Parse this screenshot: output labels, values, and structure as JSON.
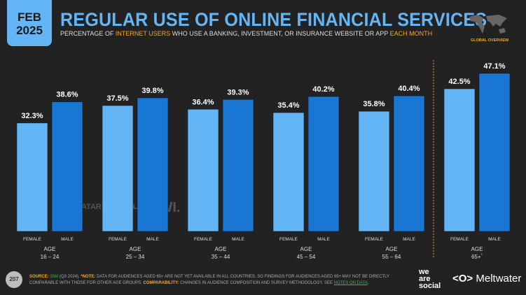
{
  "header": {
    "date_month": "FEB",
    "date_year": "2025",
    "title": "REGULAR USE OF ONLINE FINANCIAL SERVICES",
    "subtitle_pre": "PERCENTAGE OF ",
    "subtitle_hl1": "INTERNET USERS",
    "subtitle_mid": " WHO USE A BANKING, INVESTMENT, OR INSURANCE WEBSITE OR APP ",
    "subtitle_hl2": "EACH MONTH",
    "region_label": "GLOBAL OVERVIEW"
  },
  "chart_data": {
    "type": "bar",
    "title": "REGULAR USE OF ONLINE FINANCIAL SERVICES",
    "ylim": [
      0,
      50
    ],
    "grid": false,
    "categories": [
      "16 – 24",
      "25 – 34",
      "35 – 44",
      "45 – 54",
      "55 – 64",
      "65+"
    ],
    "group_label": "AGE",
    "series": [
      {
        "name": "FEMALE",
        "color": "#64b5f6",
        "values": [
          32.3,
          37.5,
          36.4,
          35.4,
          35.8,
          42.5
        ]
      },
      {
        "name": "MALE",
        "color": "#1976d2",
        "values": [
          38.6,
          39.8,
          39.3,
          40.2,
          40.4,
          47.1
        ]
      }
    ],
    "annotations": [
      "*"
    ],
    "separator_color": "#f5a623"
  },
  "watermark": {
    "left": "DATAREPORTAL",
    "right": "GWI."
  },
  "footer": {
    "page_number": "207",
    "source_label": "SOURCE:",
    "source": "GWI",
    "source_detail": " (Q3 2024). ",
    "note_label": "*NOTE:",
    "note": " DATA FOR AUDIENCES AGED 65+ ARE NOT YET AVAILABLE IN ALL COUNTRIES, SO FINDINGS FOR AUDIENCES AGED 65+ MAY NOT BE DIRECTLY COMPARABLE WITH THOSE FOR OTHER AGE GROUPS. ",
    "comp_label": "COMPARABILITY:",
    "comp": " CHANGES IN AUDIENCE COMPOSITION AND SURVEY METHODOLOGY. SEE ",
    "notes_link": "NOTES ON DATA",
    "end": ".",
    "brand1": "we are social",
    "brand2": "Meltwater"
  }
}
